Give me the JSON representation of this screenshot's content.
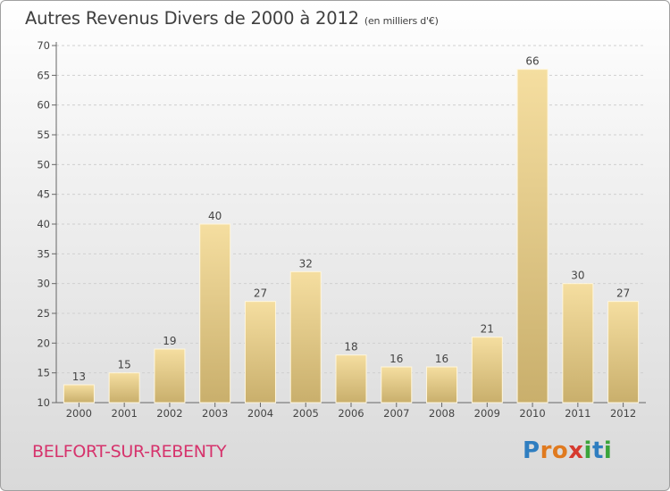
{
  "chart_data": {
    "type": "bar",
    "title": "Autres Revenus Divers de 2000 à 2012",
    "subtitle": "(en milliers d'€)",
    "categories": [
      "2000",
      "2001",
      "2002",
      "2003",
      "2004",
      "2005",
      "2006",
      "2007",
      "2008",
      "2009",
      "2010",
      "2011",
      "2012"
    ],
    "values": [
      13,
      15,
      19,
      40,
      27,
      32,
      18,
      16,
      16,
      21,
      66,
      30,
      27
    ],
    "ylim": [
      10,
      70
    ],
    "yticks": [
      10,
      15,
      20,
      25,
      30,
      35,
      40,
      45,
      50,
      55,
      60,
      65,
      70
    ],
    "grid": true,
    "bar_color_light": "#f5dea0",
    "bar_color_dark": "#c9af6c"
  },
  "footer": {
    "place": "BELFORT-SUR-REBENTY",
    "place_color": "#d6336c",
    "brand_letters": [
      {
        "ch": "P",
        "color": "#2f7ec0"
      },
      {
        "ch": "r",
        "color": "#e07a1f"
      },
      {
        "ch": "o",
        "color": "#e07a1f"
      },
      {
        "ch": "x",
        "color": "#d63a2f"
      },
      {
        "ch": "i",
        "color": "#3aa43a"
      },
      {
        "ch": "t",
        "color": "#2f7ec0"
      },
      {
        "ch": "i",
        "color": "#3aa43a"
      }
    ]
  }
}
